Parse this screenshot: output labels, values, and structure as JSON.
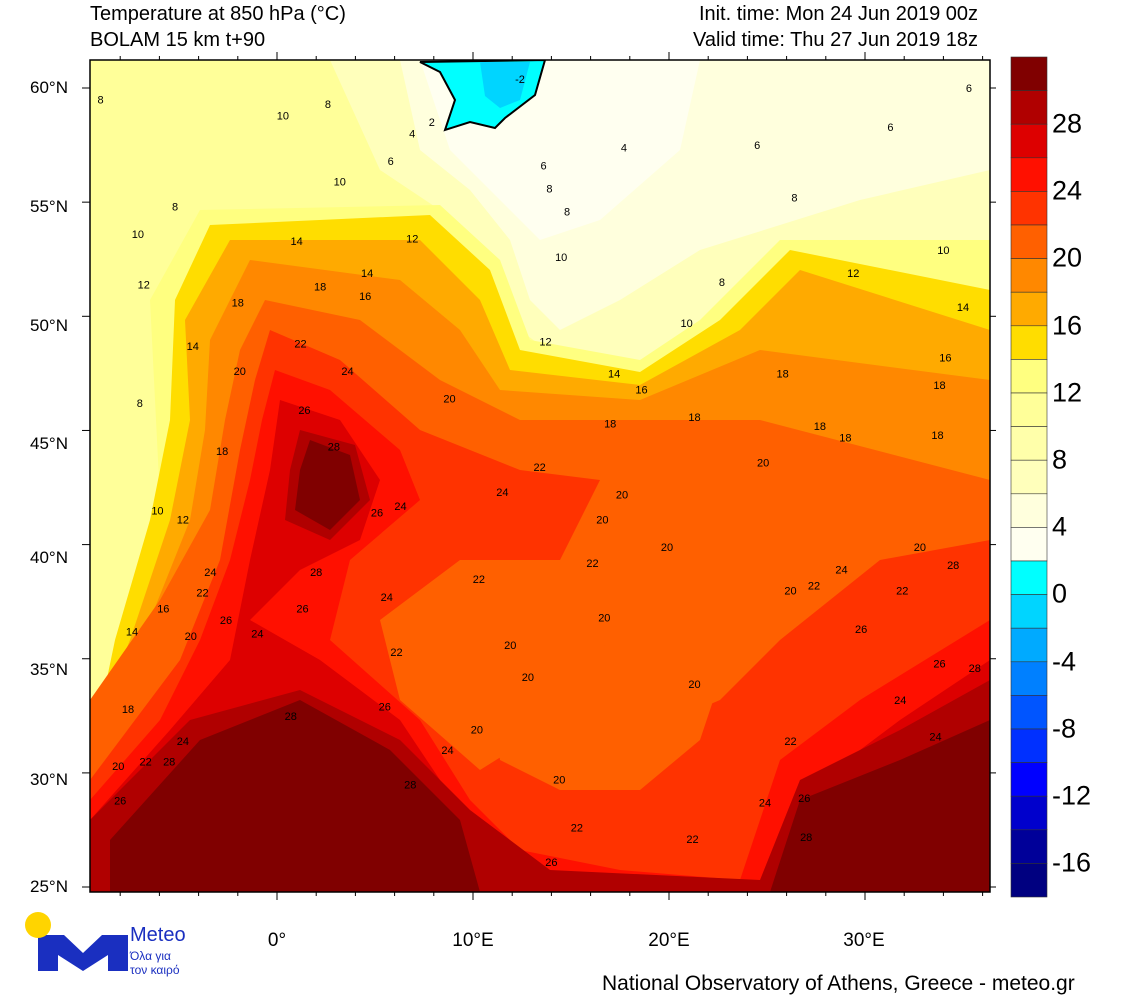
{
  "header": {
    "title": "Temperature at 850 hPa (°C)",
    "model": "BOLAM 15 km t+90",
    "init_time": "Init. time: Mon 24 Jun 2019 00z",
    "valid_time": "Valid time: Thu 27 Jun 2019 18z"
  },
  "axes": {
    "lat_labels": [
      "60°N",
      "55°N",
      "50°N",
      "45°N",
      "40°N",
      "35°N",
      "30°N",
      "25°N"
    ],
    "lon_labels": [
      "0°",
      "10°E",
      "20°E",
      "30°E"
    ]
  },
  "colorbar": {
    "labels": [
      "28",
      "24",
      "20",
      "16",
      "12",
      "8",
      "4",
      "0",
      "-4",
      "-8",
      "-12",
      "-16"
    ],
    "colors": [
      "#800000",
      "#b00000",
      "#dd0000",
      "#ff1000",
      "#ff3300",
      "#ff6000",
      "#ff8800",
      "#ffaa00",
      "#ffdd00",
      "#ffff80",
      "#ffff99",
      "#ffffaa",
      "#ffffbb",
      "#ffffdd",
      "#fffff0",
      "#00ffff",
      "#00d5ff",
      "#00aaff",
      "#0080ff",
      "#0055ff",
      "#0030ff",
      "#0000ff",
      "#0000cc",
      "#000099",
      "#000080"
    ]
  },
  "contour_labels": [
    {
      "t": "8",
      "lon": -9.0,
      "lat": 59.5
    },
    {
      "t": "10",
      "lon": 0.3,
      "lat": 58.8
    },
    {
      "t": "8",
      "lon": 2.6,
      "lat": 59.3
    },
    {
      "t": "6",
      "lon": 5.8,
      "lat": 56.8
    },
    {
      "t": "4",
      "lon": 6.9,
      "lat": 58.0
    },
    {
      "t": "10",
      "lon": 3.2,
      "lat": 55.9
    },
    {
      "t": "8",
      "lon": -5.2,
      "lat": 54.8
    },
    {
      "t": "10",
      "lon": -7.1,
      "lat": 53.6
    },
    {
      "t": "12",
      "lon": -6.8,
      "lat": 51.4
    },
    {
      "t": "14",
      "lon": 1.0,
      "lat": 53.3
    },
    {
      "t": "18",
      "lon": 2.2,
      "lat": 51.3
    },
    {
      "t": "12",
      "lon": 6.9,
      "lat": 53.4
    },
    {
      "t": "14",
      "lon": 4.6,
      "lat": 51.9
    },
    {
      "t": "16",
      "lon": 4.5,
      "lat": 50.9
    },
    {
      "t": "18",
      "lon": -2.0,
      "lat": 50.6
    },
    {
      "t": "14",
      "lon": -4.3,
      "lat": 48.7
    },
    {
      "t": "22",
      "lon": 1.2,
      "lat": 48.8
    },
    {
      "t": "20",
      "lon": -1.9,
      "lat": 47.6
    },
    {
      "t": "24",
      "lon": 3.6,
      "lat": 47.6
    },
    {
      "t": "8",
      "lon": -7.0,
      "lat": 46.2
    },
    {
      "t": "26",
      "lon": 1.4,
      "lat": 45.9
    },
    {
      "t": "20",
      "lon": 8.8,
      "lat": 46.4
    },
    {
      "t": "28",
      "lon": 2.9,
      "lat": 44.3
    },
    {
      "t": "18",
      "lon": -2.8,
      "lat": 44.1
    },
    {
      "t": "10",
      "lon": -6.1,
      "lat": 41.5
    },
    {
      "t": "12",
      "lon": -4.8,
      "lat": 41.1
    },
    {
      "t": "26",
      "lon": 5.1,
      "lat": 41.4
    },
    {
      "t": "24",
      "lon": 6.3,
      "lat": 41.7
    },
    {
      "t": "24",
      "lon": -3.4,
      "lat": 38.8
    },
    {
      "t": "22",
      "lon": -3.8,
      "lat": 37.9
    },
    {
      "t": "28",
      "lon": 2.0,
      "lat": 38.8
    },
    {
      "t": "16",
      "lon": -5.8,
      "lat": 37.2
    },
    {
      "t": "26",
      "lon": -2.6,
      "lat": 36.7
    },
    {
      "t": "26",
      "lon": 1.3,
      "lat": 37.2
    },
    {
      "t": "24",
      "lon": -1.0,
      "lat": 36.1
    },
    {
      "t": "20",
      "lon": -4.4,
      "lat": 36.0
    },
    {
      "t": "14",
      "lon": -7.4,
      "lat": 36.2
    },
    {
      "t": "24",
      "lon": 5.6,
      "lat": 37.7
    },
    {
      "t": "22",
      "lon": 6.1,
      "lat": 35.3
    },
    {
      "t": "22",
      "lon": 10.3,
      "lat": 38.5
    },
    {
      "t": "22",
      "lon": 13.4,
      "lat": 43.4
    },
    {
      "t": "24",
      "lon": 11.5,
      "lat": 42.3
    },
    {
      "t": "20",
      "lon": 16.6,
      "lat": 41.1
    },
    {
      "t": "20",
      "lon": 17.6,
      "lat": 42.2
    },
    {
      "t": "22",
      "lon": 16.1,
      "lat": 39.2
    },
    {
      "t": "20",
      "lon": 16.7,
      "lat": 36.8
    },
    {
      "t": "20",
      "lon": 11.9,
      "lat": 35.6
    },
    {
      "t": "20",
      "lon": 12.8,
      "lat": 34.2
    },
    {
      "t": "20",
      "lon": 10.2,
      "lat": 31.9
    },
    {
      "t": "24",
      "lon": 8.7,
      "lat": 31.0
    },
    {
      "t": "26",
      "lon": 5.5,
      "lat": 32.9
    },
    {
      "t": "28",
      "lon": 0.7,
      "lat": 32.5
    },
    {
      "t": "28",
      "lon": 6.8,
      "lat": 29.5
    },
    {
      "t": "18",
      "lon": -7.6,
      "lat": 32.8
    },
    {
      "t": "24",
      "lon": -4.8,
      "lat": 31.4
    },
    {
      "t": "20",
      "lon": -8.1,
      "lat": 30.3
    },
    {
      "t": "22",
      "lon": -6.7,
      "lat": 30.5
    },
    {
      "t": "28",
      "lon": -5.5,
      "lat": 30.5
    },
    {
      "t": "26",
      "lon": -8.0,
      "lat": 28.8
    },
    {
      "t": "20",
      "lon": 14.4,
      "lat": 29.7
    },
    {
      "t": "22",
      "lon": 15.3,
      "lat": 27.6
    },
    {
      "t": "26",
      "lon": 14.0,
      "lat": 26.1
    },
    {
      "t": "22",
      "lon": 21.2,
      "lat": 27.1
    },
    {
      "t": "20",
      "lon": 21.3,
      "lat": 33.9
    },
    {
      "t": "22",
      "lon": 26.2,
      "lat": 31.4
    },
    {
      "t": "24",
      "lon": 24.9,
      "lat": 28.7
    },
    {
      "t": "26",
      "lon": 26.9,
      "lat": 28.9
    },
    {
      "t": "28",
      "lon": 27.0,
      "lat": 27.2
    },
    {
      "t": "24",
      "lon": 31.8,
      "lat": 33.2
    },
    {
      "t": "24",
      "lon": 33.6,
      "lat": 31.6
    },
    {
      "t": "26",
      "lon": 33.8,
      "lat": 34.8
    },
    {
      "t": "28",
      "lon": 35.6,
      "lat": 34.6
    },
    {
      "t": "26",
      "lon": 29.8,
      "lat": 36.3
    },
    {
      "t": "22",
      "lon": 31.9,
      "lat": 38.0
    },
    {
      "t": "20",
      "lon": 26.2,
      "lat": 38.0
    },
    {
      "t": "22",
      "lon": 27.4,
      "lat": 38.2
    },
    {
      "t": "24",
      "lon": 28.8,
      "lat": 38.9
    },
    {
      "t": "20",
      "lon": 32.8,
      "lat": 39.9
    },
    {
      "t": "28",
      "lon": 34.5,
      "lat": 39.1
    },
    {
      "t": "20",
      "lon": 19.9,
      "lat": 39.9
    },
    {
      "t": "20",
      "lon": 24.8,
      "lat": 43.6
    },
    {
      "t": "18",
      "lon": 17.0,
      "lat": 45.3
    },
    {
      "t": "18",
      "lon": 21.3,
      "lat": 45.6
    },
    {
      "t": "18",
      "lon": 25.8,
      "lat": 47.5
    },
    {
      "t": "18",
      "lon": 27.7,
      "lat": 45.2
    },
    {
      "t": "18",
      "lon": 29.0,
      "lat": 44.7
    },
    {
      "t": "18",
      "lon": 33.7,
      "lat": 44.8
    },
    {
      "t": "18",
      "lon": 33.8,
      "lat": 47.0
    },
    {
      "t": "16",
      "lon": 34.1,
      "lat": 48.2
    },
    {
      "t": "16",
      "lon": 18.6,
      "lat": 46.8
    },
    {
      "t": "14",
      "lon": 17.2,
      "lat": 47.5
    },
    {
      "t": "12",
      "lon": 13.7,
      "lat": 48.9
    },
    {
      "t": "10",
      "lon": 20.9,
      "lat": 49.7
    },
    {
      "t": "14",
      "lon": 35.0,
      "lat": 50.4
    },
    {
      "t": "12",
      "lon": 29.4,
      "lat": 51.9
    },
    {
      "t": "10",
      "lon": 34.0,
      "lat": 52.9
    },
    {
      "t": "8",
      "lon": 22.7,
      "lat": 51.5
    },
    {
      "t": "8",
      "lon": 26.4,
      "lat": 55.2
    },
    {
      "t": "6",
      "lon": 24.5,
      "lat": 57.5
    },
    {
      "t": "6",
      "lon": 31.3,
      "lat": 58.3
    },
    {
      "t": "6",
      "lon": 35.3,
      "lat": 60.0
    },
    {
      "t": "10",
      "lon": 14.5,
      "lat": 52.6
    },
    {
      "t": "8",
      "lon": 13.9,
      "lat": 55.6
    },
    {
      "t": "6",
      "lon": 13.6,
      "lat": 56.6
    },
    {
      "t": "8",
      "lon": 14.8,
      "lat": 54.6
    },
    {
      "t": "4",
      "lon": 17.7,
      "lat": 57.4
    },
    {
      "t": "-2",
      "lon": 12.4,
      "lat": 60.4
    },
    {
      "t": "2",
      "lon": 7.9,
      "lat": 58.5
    }
  ],
  "logo": {
    "name": "Meteo",
    "tagline1": "Όλα για",
    "tagline2": "τον καιρό",
    "colors": {
      "blue": "#1a2fc0",
      "sun": "#ffd400"
    }
  },
  "footer": "National Observatory of Athens, Greece - meteo.gr"
}
